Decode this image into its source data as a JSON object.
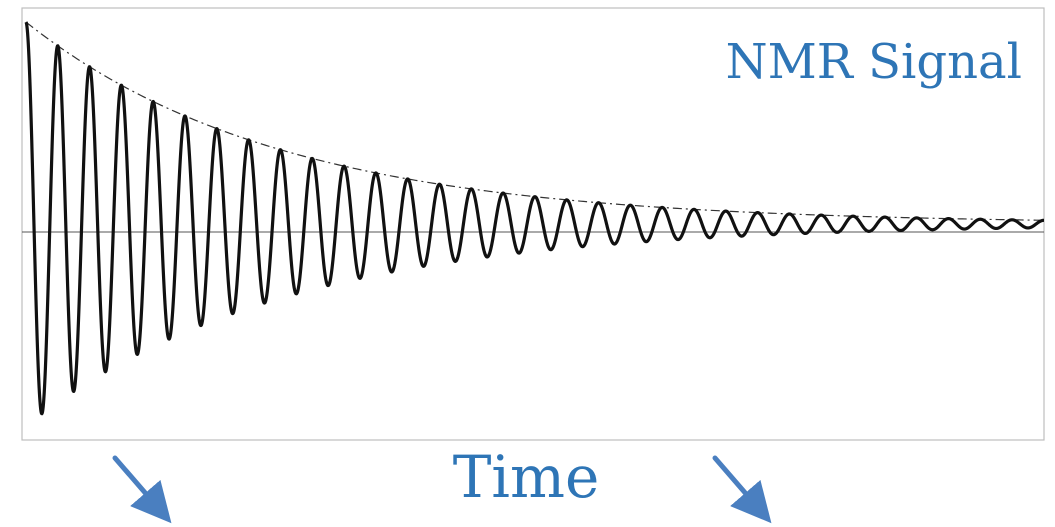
{
  "chart_data": {
    "type": "line",
    "title": "NMR Signal",
    "xlabel": "Time",
    "ylabel": "",
    "grid": false,
    "legend": "none",
    "xlim": [
      0,
      1
    ],
    "ylim": [
      -1.05,
      1.05
    ],
    "series": [
      {
        "kind": "damped-oscillation",
        "amplitude": 1.0,
        "decay_rate": 4.0,
        "cycles": 32,
        "color": "#111111"
      },
      {
        "kind": "decay-envelope",
        "amplitude": 1.0,
        "decay_rate": 4.0,
        "color": "#333333"
      }
    ]
  },
  "colors": {
    "title": "#2e75b6",
    "xlabel": "#2e75b6",
    "arrows": "#4a7fc0"
  },
  "annotations": [
    {
      "name": "left-arrow-icon",
      "direction": "down-right"
    },
    {
      "name": "right-arrow-icon",
      "direction": "down-right"
    }
  ]
}
